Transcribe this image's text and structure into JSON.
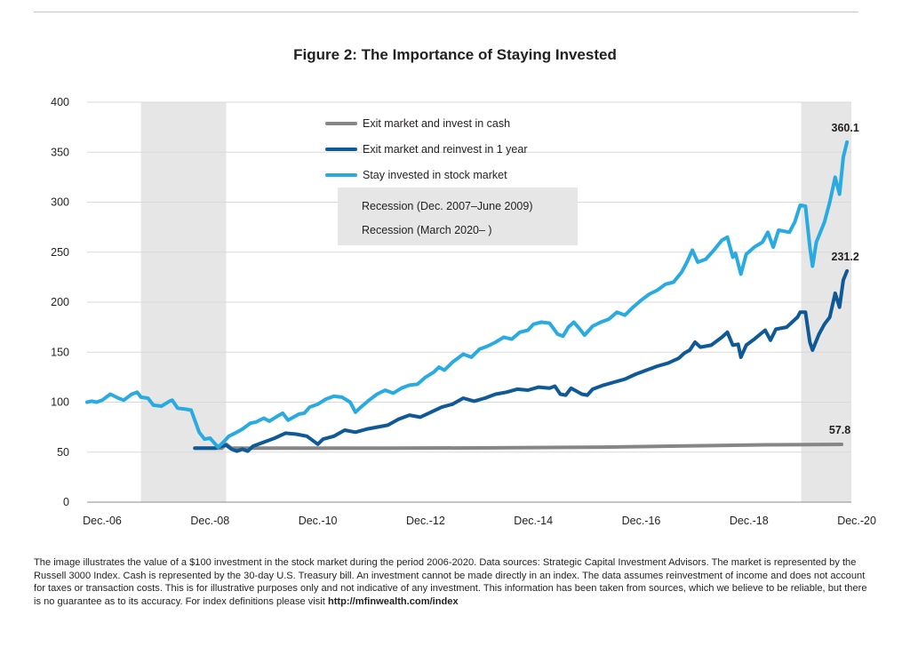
{
  "chart_data": {
    "type": "line",
    "title": "Figure 2: The Importance of Staying Invested",
    "xlabel": "",
    "ylabel": "",
    "ylim": [
      0,
      400
    ],
    "yticks": [
      0,
      50,
      100,
      150,
      200,
      250,
      300,
      350,
      400
    ],
    "xlim": [
      2006.92,
      2021.1
    ],
    "xticks": [
      {
        "value": 2006.92,
        "label": "Dec.-06"
      },
      {
        "value": 2008.92,
        "label": "Dec.-08"
      },
      {
        "value": 2010.92,
        "label": "Dec.-10"
      },
      {
        "value": 2012.92,
        "label": "Dec.-12"
      },
      {
        "value": 2014.92,
        "label": "Dec.-14"
      },
      {
        "value": 2016.92,
        "label": "Dec.-16"
      },
      {
        "value": 2018.92,
        "label": "Dec.-18"
      },
      {
        "value": 2020.92,
        "label": "Dec.-20"
      }
    ],
    "recessions": [
      {
        "label": "Recession (Dec. 2007–June 2009)",
        "start": 2007.92,
        "end": 2009.5
      },
      {
        "label": "Recession (March 2020– )",
        "start": 2020.17,
        "end": 2021.1
      }
    ],
    "series": [
      {
        "name": "Exit market and invest in cash",
        "color": "#868686",
        "end_label": "57.8",
        "points": [
          [
            2008.92,
            54
          ],
          [
            2009.17,
            54
          ],
          [
            2009.42,
            54
          ],
          [
            2009.5,
            58
          ],
          [
            2009.6,
            54
          ],
          [
            2010.5,
            54
          ],
          [
            2012.5,
            54
          ],
          [
            2014.5,
            54.3
          ],
          [
            2016.5,
            55
          ],
          [
            2018.5,
            56.5
          ],
          [
            2019.5,
            57.3
          ],
          [
            2020.92,
            57.8
          ]
        ]
      },
      {
        "name": "Exit market and reinvest in 1 year",
        "color": "#0f5a96",
        "end_label": "231.2",
        "points": [
          [
            2008.92,
            54
          ],
          [
            2009.3,
            54
          ],
          [
            2009.42,
            56
          ],
          [
            2009.5,
            57
          ],
          [
            2009.6,
            53
          ],
          [
            2009.7,
            51
          ],
          [
            2009.8,
            53
          ],
          [
            2009.9,
            51
          ],
          [
            2010.0,
            56
          ],
          [
            2010.2,
            60
          ],
          [
            2010.4,
            64
          ],
          [
            2010.6,
            69
          ],
          [
            2010.8,
            68
          ],
          [
            2011.0,
            66
          ],
          [
            2011.1,
            62
          ],
          [
            2011.2,
            58
          ],
          [
            2011.3,
            63
          ],
          [
            2011.5,
            66
          ],
          [
            2011.7,
            72
          ],
          [
            2011.9,
            70
          ],
          [
            2012.1,
            73
          ],
          [
            2012.3,
            75
          ],
          [
            2012.5,
            77
          ],
          [
            2012.7,
            83
          ],
          [
            2012.9,
            87
          ],
          [
            2013.1,
            85
          ],
          [
            2013.3,
            90
          ],
          [
            2013.5,
            95
          ],
          [
            2013.7,
            98
          ],
          [
            2013.9,
            104
          ],
          [
            2014.1,
            101
          ],
          [
            2014.3,
            104
          ],
          [
            2014.5,
            108
          ],
          [
            2014.7,
            110
          ],
          [
            2014.9,
            113
          ],
          [
            2015.1,
            112
          ],
          [
            2015.3,
            115
          ],
          [
            2015.5,
            114
          ],
          [
            2015.6,
            116
          ],
          [
            2015.7,
            108
          ],
          [
            2015.8,
            107
          ],
          [
            2015.9,
            114
          ],
          [
            2016.1,
            108
          ],
          [
            2016.2,
            107
          ],
          [
            2016.3,
            113
          ],
          [
            2016.5,
            117
          ],
          [
            2016.7,
            120
          ],
          [
            2016.9,
            123
          ],
          [
            2017.1,
            128
          ],
          [
            2017.3,
            132
          ],
          [
            2017.5,
            136
          ],
          [
            2017.7,
            139
          ],
          [
            2017.9,
            144
          ],
          [
            2018.0,
            149
          ],
          [
            2018.1,
            152
          ],
          [
            2018.2,
            160
          ],
          [
            2018.3,
            155
          ],
          [
            2018.5,
            157
          ],
          [
            2018.7,
            165
          ],
          [
            2018.8,
            170
          ],
          [
            2018.9,
            157
          ],
          [
            2019.0,
            158
          ],
          [
            2019.05,
            145
          ],
          [
            2019.15,
            157
          ],
          [
            2019.3,
            163
          ],
          [
            2019.5,
            172
          ],
          [
            2019.6,
            162
          ],
          [
            2019.7,
            173
          ],
          [
            2019.9,
            175
          ],
          [
            2020.1,
            185
          ],
          [
            2020.15,
            190
          ],
          [
            2020.25,
            190
          ],
          [
            2020.33,
            160
          ],
          [
            2020.38,
            152
          ],
          [
            2020.5,
            168
          ],
          [
            2020.6,
            178
          ],
          [
            2020.7,
            185
          ],
          [
            2020.8,
            209
          ],
          [
            2020.88,
            195
          ],
          [
            2020.95,
            222
          ],
          [
            2021.02,
            231.2
          ]
        ]
      },
      {
        "name": "Stay invested in stock market",
        "color": "#29abe2",
        "end_label": "360.1",
        "points": [
          [
            2006.92,
            100
          ],
          [
            2007.0,
            101
          ],
          [
            2007.1,
            100
          ],
          [
            2007.2,
            102
          ],
          [
            2007.35,
            108
          ],
          [
            2007.5,
            104
          ],
          [
            2007.6,
            102
          ],
          [
            2007.75,
            108
          ],
          [
            2007.85,
            110
          ],
          [
            2007.92,
            105
          ],
          [
            2008.05,
            104
          ],
          [
            2008.15,
            97
          ],
          [
            2008.3,
            96
          ],
          [
            2008.45,
            101
          ],
          [
            2008.5,
            102
          ],
          [
            2008.6,
            94
          ],
          [
            2008.75,
            93
          ],
          [
            2008.85,
            92
          ],
          [
            2009.0,
            70
          ],
          [
            2009.1,
            63
          ],
          [
            2009.2,
            64
          ],
          [
            2009.35,
            55
          ],
          [
            2009.45,
            60
          ],
          [
            2009.55,
            66
          ],
          [
            2009.7,
            70
          ],
          [
            2009.8,
            73
          ],
          [
            2009.95,
            79
          ],
          [
            2010.05,
            80
          ],
          [
            2010.2,
            84
          ],
          [
            2010.3,
            81
          ],
          [
            2010.45,
            86
          ],
          [
            2010.55,
            89
          ],
          [
            2010.65,
            82
          ],
          [
            2010.75,
            85
          ],
          [
            2010.85,
            88
          ],
          [
            2010.95,
            89
          ],
          [
            2011.05,
            95
          ],
          [
            2011.2,
            98
          ],
          [
            2011.35,
            103
          ],
          [
            2011.5,
            106
          ],
          [
            2011.65,
            105
          ],
          [
            2011.8,
            100
          ],
          [
            2011.9,
            90
          ],
          [
            2012.0,
            95
          ],
          [
            2012.15,
            102
          ],
          [
            2012.3,
            108
          ],
          [
            2012.45,
            112
          ],
          [
            2012.6,
            109
          ],
          [
            2012.75,
            114
          ],
          [
            2012.9,
            117
          ],
          [
            2013.05,
            118
          ],
          [
            2013.2,
            125
          ],
          [
            2013.35,
            130
          ],
          [
            2013.45,
            135
          ],
          [
            2013.55,
            132
          ],
          [
            2013.7,
            140
          ],
          [
            2013.9,
            148
          ],
          [
            2014.05,
            145
          ],
          [
            2014.2,
            153
          ],
          [
            2014.35,
            156
          ],
          [
            2014.5,
            160
          ],
          [
            2014.65,
            165
          ],
          [
            2014.8,
            163
          ],
          [
            2014.95,
            170
          ],
          [
            2015.1,
            172
          ],
          [
            2015.2,
            178
          ],
          [
            2015.35,
            180
          ],
          [
            2015.5,
            179
          ],
          [
            2015.65,
            168
          ],
          [
            2015.75,
            166
          ],
          [
            2015.85,
            175
          ],
          [
            2015.95,
            180
          ],
          [
            2016.05,
            174
          ],
          [
            2016.15,
            167
          ],
          [
            2016.3,
            176
          ],
          [
            2016.45,
            180
          ],
          [
            2016.6,
            183
          ],
          [
            2016.75,
            190
          ],
          [
            2016.9,
            187
          ],
          [
            2017.05,
            195
          ],
          [
            2017.2,
            202
          ],
          [
            2017.35,
            208
          ],
          [
            2017.5,
            212
          ],
          [
            2017.65,
            218
          ],
          [
            2017.8,
            220
          ],
          [
            2017.95,
            230
          ],
          [
            2018.05,
            240
          ],
          [
            2018.15,
            252
          ],
          [
            2018.25,
            240
          ],
          [
            2018.4,
            243
          ],
          [
            2018.55,
            252
          ],
          [
            2018.7,
            262
          ],
          [
            2018.8,
            265
          ],
          [
            2018.9,
            245
          ],
          [
            2018.95,
            249
          ],
          [
            2019.05,
            228
          ],
          [
            2019.15,
            248
          ],
          [
            2019.3,
            255
          ],
          [
            2019.45,
            260
          ],
          [
            2019.55,
            270
          ],
          [
            2019.65,
            255
          ],
          [
            2019.75,
            272
          ],
          [
            2019.95,
            270
          ],
          [
            2020.05,
            280
          ],
          [
            2020.15,
            297
          ],
          [
            2020.25,
            296
          ],
          [
            2020.33,
            255
          ],
          [
            2020.38,
            236
          ],
          [
            2020.45,
            260
          ],
          [
            2020.6,
            280
          ],
          [
            2020.7,
            300
          ],
          [
            2020.8,
            325
          ],
          [
            2020.88,
            308
          ],
          [
            2020.95,
            345
          ],
          [
            2021.02,
            360.1
          ]
        ]
      }
    ],
    "legend_position": "top-center"
  },
  "footnote": {
    "text": "The image illustrates the value of a $100 investment in the stock market during the period 2006-2020. Data sources: Strategic Capital Investment Advisors. The market is represented by the Russell 3000 Index. Cash is represented by the 30-day U.S. Treasury bill. An investment cannot be made directly in an index. The data assumes reinvestment of income and does not account for taxes or transaction costs. This is for illustrative purposes only and not indicative of any investment. This information has been taken from sources, which we believe to be reliable, but there is no guarantee as to its accuracy. For index definitions please visit ",
    "link": "http://mfinwealth.com/index"
  },
  "colors": {
    "recession_fill": "#e6e6e6",
    "legend_box_fill": "#e6e6e6",
    "grid": "#d9d9d9"
  }
}
